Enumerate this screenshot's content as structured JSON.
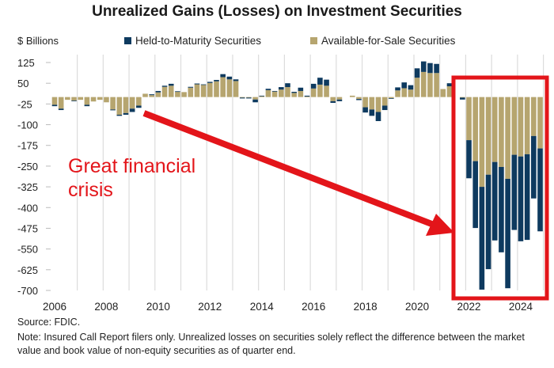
{
  "chart_data": {
    "type": "bar",
    "stacked": true,
    "title": "Unrealized Gains (Losses) on Investment Securities",
    "ylabel": "$ Billions",
    "xlabel": "",
    "ylim": [
      -700,
      125
    ],
    "yticks": [
      125,
      50,
      -25,
      -100,
      -175,
      -250,
      -325,
      -400,
      -475,
      -550,
      -625,
      -700
    ],
    "xticks": [
      "2006",
      "2008",
      "2010",
      "2012",
      "2014",
      "2016",
      "2018",
      "2020",
      "2022",
      "2024"
    ],
    "grid": "vertical",
    "legend": "top",
    "categories": [
      "2006Q1",
      "2006Q2",
      "2006Q3",
      "2006Q4",
      "2007Q1",
      "2007Q2",
      "2007Q3",
      "2007Q4",
      "2008Q1",
      "2008Q2",
      "2008Q3",
      "2008Q4",
      "2009Q1",
      "2009Q2",
      "2009Q3",
      "2009Q4",
      "2010Q1",
      "2010Q2",
      "2010Q3",
      "2010Q4",
      "2011Q1",
      "2011Q2",
      "2011Q3",
      "2011Q4",
      "2012Q1",
      "2012Q2",
      "2012Q3",
      "2012Q4",
      "2013Q1",
      "2013Q2",
      "2013Q3",
      "2013Q4",
      "2014Q1",
      "2014Q2",
      "2014Q3",
      "2014Q4",
      "2015Q1",
      "2015Q2",
      "2015Q3",
      "2015Q4",
      "2016Q1",
      "2016Q2",
      "2016Q3",
      "2016Q4",
      "2017Q1",
      "2017Q2",
      "2017Q3",
      "2017Q4",
      "2018Q1",
      "2018Q2",
      "2018Q3",
      "2018Q4",
      "2019Q1",
      "2019Q2",
      "2019Q3",
      "2019Q4",
      "2020Q1",
      "2020Q2",
      "2020Q3",
      "2020Q4",
      "2021Q1",
      "2021Q2",
      "2021Q3",
      "2021Q4",
      "2022Q1",
      "2022Q2",
      "2022Q3",
      "2022Q4",
      "2023Q1",
      "2023Q2",
      "2023Q3",
      "2023Q4",
      "2024Q1",
      "2024Q2",
      "2024Q3",
      "2024Q4"
    ],
    "series": [
      {
        "name": "Available-for-Sale Securities",
        "color": "#b6a56f",
        "values": [
          -28,
          -42,
          -10,
          -13,
          -10,
          -28,
          -16,
          -10,
          -19,
          -45,
          -64,
          -58,
          -42,
          -31,
          12,
          7,
          17,
          37,
          41,
          19,
          18,
          34,
          46,
          44,
          51,
          57,
          72,
          64,
          58,
          -2,
          -2,
          -9,
          3,
          25,
          20,
          27,
          36,
          15,
          22,
          2,
          31,
          45,
          41,
          -15,
          -9,
          0,
          5,
          -7,
          -37,
          -45,
          -54,
          -31,
          -4,
          24,
          32,
          27,
          70,
          91,
          87,
          87,
          29,
          39,
          0,
          -2,
          -156,
          -232,
          -325,
          -281,
          -235,
          -253,
          -296,
          -209,
          -215,
          -207,
          -141,
          -186
        ]
      },
      {
        "name": "Held-to-Maturity Securities",
        "color": "#0e3a5f",
        "values": [
          -5,
          -5,
          0,
          -2,
          0,
          -5,
          0,
          0,
          0,
          -3,
          -4,
          -6,
          -12,
          -8,
          0,
          3,
          5,
          4,
          7,
          2,
          0,
          3,
          3,
          2,
          4,
          5,
          11,
          10,
          6,
          -3,
          -3,
          -10,
          2,
          5,
          2,
          9,
          14,
          4,
          12,
          3,
          17,
          25,
          22,
          -6,
          -6,
          0,
          0,
          -4,
          -19,
          -23,
          -33,
          -16,
          -2,
          11,
          21,
          16,
          34,
          38,
          36,
          33,
          0,
          11,
          0,
          -7,
          -138,
          -242,
          -372,
          -342,
          -284,
          -309,
          -396,
          -272,
          -307,
          -310,
          -226,
          -300
        ]
      }
    ],
    "annotations": [
      {
        "text": "Great financial crisis",
        "color": "#e3151a"
      }
    ],
    "highlight_color": "#e3151a"
  },
  "legend": {
    "htm": "Held-to-Maturity Securities",
    "afs": "Available-for-Sale Securities"
  },
  "footer": {
    "source": "Source: FDIC.",
    "note": "Note: Insured Call Report filers only. Unrealized losses on securities solely reflect the difference between the market value and book value of non-equity securities as of quarter end."
  }
}
